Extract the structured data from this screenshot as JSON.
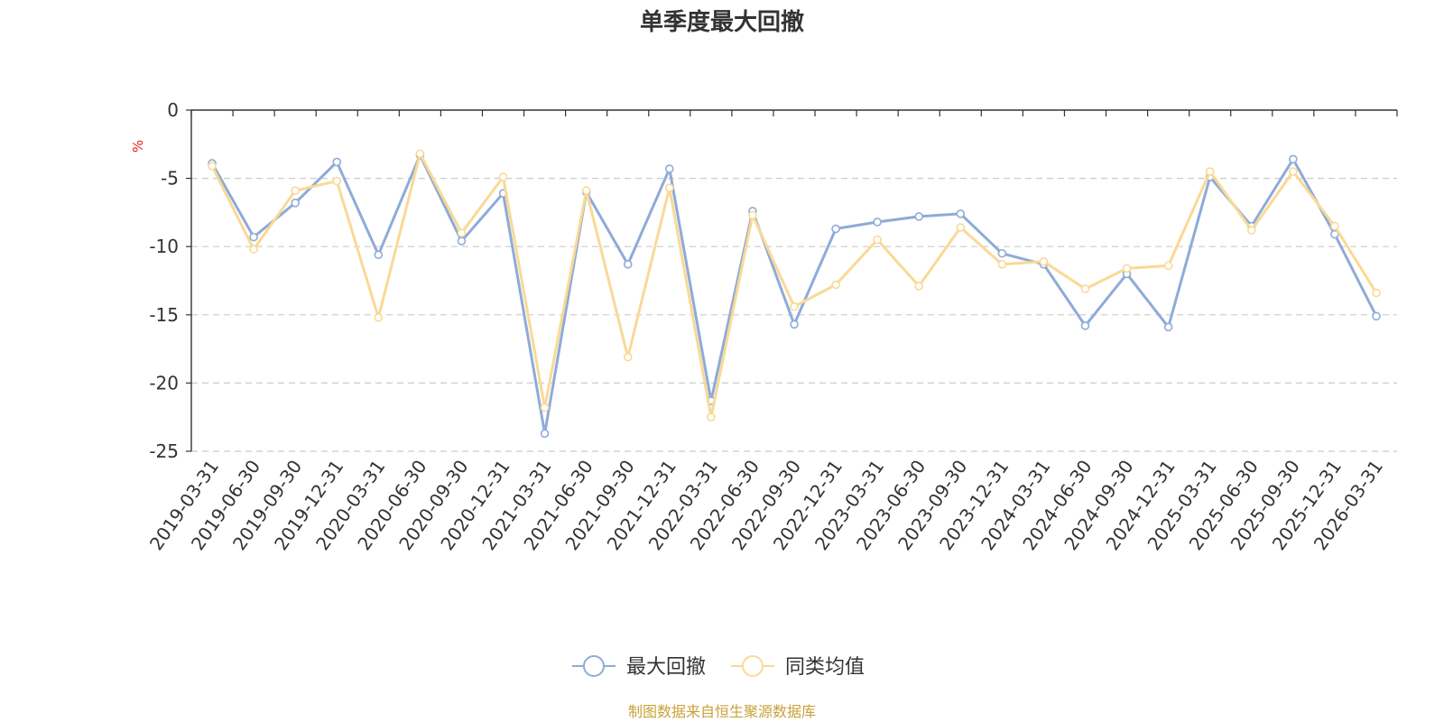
{
  "title": "单季度最大回撤",
  "source_note": "制图数据来自恒生聚源数据库",
  "chart_data": {
    "type": "line",
    "title": "单季度最大回撤",
    "ylabel": "%",
    "ylim": [
      -25,
      0
    ],
    "yticks": [
      0,
      -5,
      -10,
      -15,
      -20,
      -25
    ],
    "grid": true,
    "legend_position": "bottom-center",
    "categories": [
      "2019-03-31",
      "2019-06-30",
      "2019-09-30",
      "2019-12-31",
      "2020-03-31",
      "2020-06-30",
      "2020-09-30",
      "2020-12-31",
      "2021-03-31",
      "2021-06-30",
      "2021-09-30",
      "2021-12-31",
      "2022-03-31",
      "2022-06-30",
      "2022-09-30",
      "2022-12-31",
      "2023-03-31",
      "2023-06-30",
      "2023-09-30",
      "2023-12-31",
      "2024-03-31",
      "2024-06-30",
      "2024-09-30",
      "2024-12-31",
      "2025-03-31",
      "2025-06-30",
      "2025-09-30",
      "2025-12-31",
      "2026-03-31"
    ],
    "series": [
      {
        "name": "最大回撤",
        "color": "#8eabd8",
        "values": [
          -3.9,
          -9.3,
          -6.8,
          -3.8,
          -10.6,
          -3.3,
          -9.6,
          -6.1,
          -23.7,
          -6.0,
          -11.3,
          -4.3,
          -21.3,
          -7.4,
          -15.7,
          -8.7,
          -8.2,
          -7.8,
          -7.6,
          -10.5,
          -11.3,
          -15.8,
          -12.0,
          -15.9,
          -4.9,
          -8.5,
          -3.6,
          -9.1,
          -15.1
        ]
      },
      {
        "name": "同类均值",
        "color": "#fad996",
        "values": [
          -4.1,
          -10.2,
          -5.9,
          -5.2,
          -15.2,
          -3.2,
          -9.0,
          -4.9,
          -21.8,
          -5.9,
          -18.1,
          -5.7,
          -22.5,
          -7.7,
          -14.4,
          -12.8,
          -9.5,
          -12.9,
          -8.6,
          -11.3,
          -11.1,
          -13.1,
          -11.6,
          -11.4,
          -4.5,
          -8.8,
          -4.5,
          -8.5,
          -13.4
        ]
      }
    ]
  }
}
